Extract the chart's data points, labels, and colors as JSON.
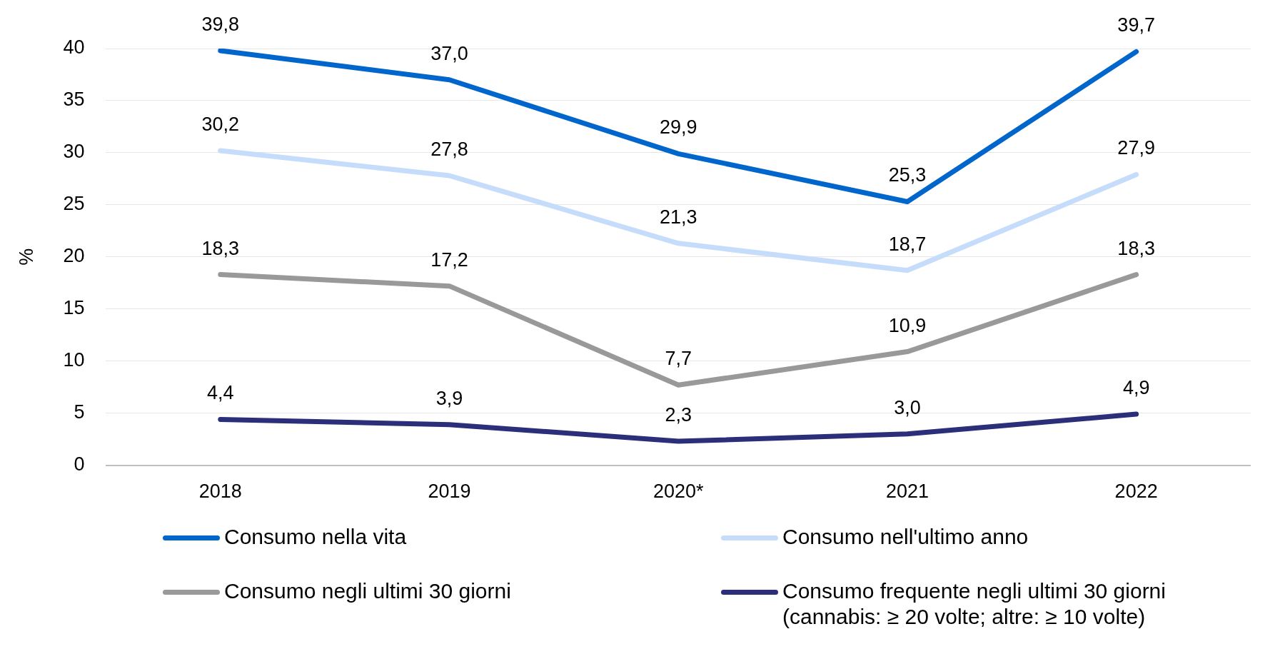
{
  "chart_data": {
    "type": "line",
    "ylabel": "%",
    "categories": [
      "2018",
      "2019",
      "2020*",
      "2021",
      "2022"
    ],
    "ylim": [
      0,
      40
    ],
    "yticks": [
      0,
      5,
      10,
      15,
      20,
      25,
      30,
      35,
      40
    ],
    "grid": "y",
    "legend": "bottom",
    "marker": "none",
    "line_style": "solid",
    "series": [
      {
        "name": "Consumo nella vita",
        "color": "#0066cc",
        "values": [
          39.8,
          37.0,
          29.9,
          25.3,
          39.7
        ],
        "value_labels": [
          "39,8",
          "37,0",
          "29,9",
          "25,3",
          "39,7"
        ]
      },
      {
        "name": "Consumo nell'ultimo anno",
        "color": "#c5dcfa",
        "values": [
          30.2,
          27.8,
          21.3,
          18.7,
          27.9
        ],
        "value_labels": [
          "30,2",
          "27,8",
          "21,3",
          "18,7",
          "27,9"
        ]
      },
      {
        "name": "Consumo negli ultimi 30 giorni",
        "color": "#999999",
        "values": [
          18.3,
          17.2,
          7.7,
          10.9,
          18.3
        ],
        "value_labels": [
          "18,3",
          "17,2",
          "7,7",
          "10,9",
          "18,3"
        ]
      },
      {
        "name": "Consumo frequente negli ultimi 30 giorni\n(cannabis: ≥ 20 volte; altre: ≥ 10 volte)",
        "color": "#2b2f7a",
        "values": [
          4.4,
          3.9,
          2.3,
          3.0,
          4.9
        ],
        "value_labels": [
          "4,4",
          "3,9",
          "2,3",
          "3,0",
          "4,9"
        ]
      }
    ]
  }
}
